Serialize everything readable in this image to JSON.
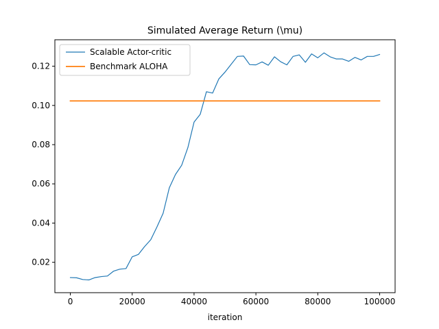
{
  "chart_data": {
    "type": "line",
    "title": "Simulated Average Return (\\mu)",
    "xlabel": "iteration",
    "ylabel": "",
    "xlim": [
      -5000,
      105000
    ],
    "ylim": [
      0.0045,
      0.1335
    ],
    "xticks": [
      0,
      20000,
      40000,
      60000,
      80000,
      100000
    ],
    "xtick_labels": [
      "0",
      "20000",
      "40000",
      "60000",
      "80000",
      "100000"
    ],
    "yticks": [
      0.02,
      0.04,
      0.06,
      0.08,
      0.1,
      0.12
    ],
    "ytick_labels": [
      "0.02",
      "0.04",
      "0.06",
      "0.08",
      "0.10",
      "0.12"
    ],
    "grid": false,
    "legend_position": "top-left",
    "series": [
      {
        "name": "Scalable Actor-critic",
        "color": "#1f77b4",
        "x": [
          0,
          2000,
          4000,
          6000,
          8000,
          10000,
          12000,
          14000,
          16000,
          18000,
          20000,
          22000,
          24000,
          26000,
          28000,
          30000,
          32000,
          34000,
          36000,
          38000,
          40000,
          42000,
          44000,
          46000,
          48000,
          50000,
          52000,
          54000,
          56000,
          58000,
          60000,
          62000,
          64000,
          66000,
          68000,
          70000,
          72000,
          74000,
          76000,
          78000,
          80000,
          82000,
          84000,
          86000,
          88000,
          90000,
          92000,
          94000,
          96000,
          98000,
          100000
        ],
        "y": [
          0.0122,
          0.0121,
          0.0112,
          0.011,
          0.0122,
          0.0127,
          0.013,
          0.0155,
          0.0165,
          0.0168,
          0.0228,
          0.024,
          0.028,
          0.0315,
          0.038,
          0.045,
          0.058,
          0.0648,
          0.0695,
          0.0785,
          0.0915,
          0.0955,
          0.107,
          0.1063,
          0.1135,
          0.117,
          0.121,
          0.125,
          0.1252,
          0.1208,
          0.1207,
          0.1222,
          0.1205,
          0.1248,
          0.1223,
          0.1207,
          0.125,
          0.1258,
          0.122,
          0.1263,
          0.1243,
          0.1268,
          0.1248,
          0.1237,
          0.1237,
          0.1225,
          0.1245,
          0.1232,
          0.125,
          0.125,
          0.126
        ]
      },
      {
        "name": "Benchmark ALOHA",
        "color": "#ff7f0e",
        "x": [
          0,
          100000
        ],
        "y": [
          0.1023,
          0.1023
        ]
      }
    ]
  }
}
